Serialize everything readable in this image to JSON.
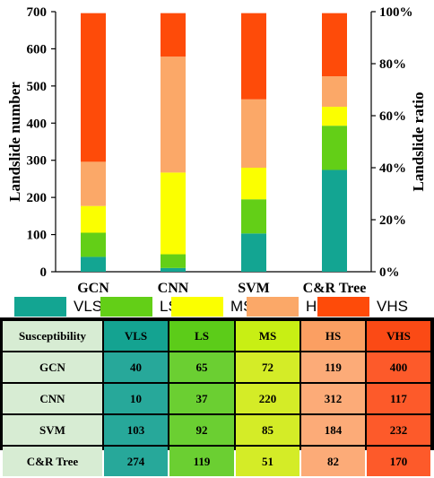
{
  "chart_data": {
    "type": "bar",
    "stacked": true,
    "categories": [
      "GCN",
      "CNN",
      "SVM",
      "C&R Tree"
    ],
    "series": [
      {
        "name": "VLS",
        "values": [
          40,
          10,
          103,
          274
        ]
      },
      {
        "name": "LS",
        "values": [
          65,
          37,
          92,
          119
        ]
      },
      {
        "name": "MS",
        "values": [
          72,
          220,
          85,
          51
        ]
      },
      {
        "name": "HS",
        "values": [
          119,
          312,
          184,
          82
        ]
      },
      {
        "name": "VHS",
        "values": [
          400,
          117,
          232,
          170
        ]
      }
    ],
    "ylabel": "Landslide number",
    "y2label": "Landslide ratio",
    "ylim": [
      0,
      700
    ],
    "yticks": [
      "0",
      "100",
      "200",
      "300",
      "400",
      "500",
      "600",
      "700"
    ],
    "y2ticks": [
      "0%",
      "20%",
      "40%",
      "60%",
      "80%",
      "100%"
    ],
    "legend_position": "bottom",
    "colors": {
      "VLS": "#13a592",
      "LS": "#63cf17",
      "MS": "#fbff00",
      "HS": "#fba868",
      "VHS": "#fe4b09"
    }
  },
  "table": {
    "header": "Susceptibility",
    "columns": [
      "VLS",
      "LS",
      "MS",
      "HS",
      "VHS"
    ],
    "header_colors": [
      "#14a391",
      "#5ccc19",
      "#c8ef14",
      "#fb9f62",
      "#fb4a15"
    ],
    "cell_colors": [
      "#27a89a",
      "#6bcf32",
      "#d4ec27",
      "#fcab78",
      "#fd5a2a"
    ],
    "rows": [
      {
        "label": "GCN",
        "values": [
          "40",
          "65",
          "72",
          "119",
          "400"
        ]
      },
      {
        "label": "CNN",
        "values": [
          "10",
          "37",
          "220",
          "312",
          "117"
        ]
      },
      {
        "label": "SVM",
        "values": [
          "103",
          "92",
          "85",
          "184",
          "232"
        ]
      },
      {
        "label": "C&R Tree",
        "values": [
          "274",
          "119",
          "51",
          "82",
          "170"
        ]
      }
    ]
  }
}
